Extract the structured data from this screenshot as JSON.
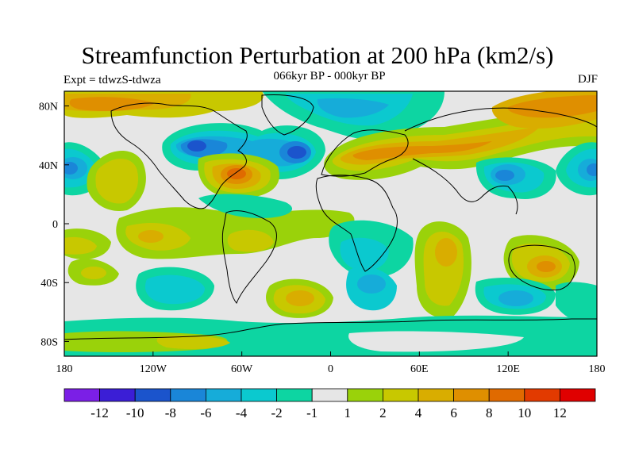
{
  "header": {
    "title": "Streamfunction Perturbation at 200 hPa (km2/s)",
    "left": "Expt = tdwzS-tdwza",
    "center": "066kyr BP - 000kyr BP",
    "right": "DJF"
  },
  "map": {
    "projection": "cylindrical-equidistant",
    "lon_range": [
      -180,
      180
    ],
    "lat_range": [
      -90,
      90
    ],
    "x_ticks": [
      {
        "value": -180,
        "label": "180"
      },
      {
        "value": -120,
        "label": "120W"
      },
      {
        "value": -60,
        "label": "60W"
      },
      {
        "value": 0,
        "label": "0"
      },
      {
        "value": 60,
        "label": "60E"
      },
      {
        "value": 120,
        "label": "120E"
      },
      {
        "value": 180,
        "label": "180"
      }
    ],
    "y_ticks": [
      {
        "value": 80,
        "label": "80N"
      },
      {
        "value": 40,
        "label": "40N"
      },
      {
        "value": 0,
        "label": "0"
      },
      {
        "value": -40,
        "label": "40S"
      },
      {
        "value": -80,
        "label": "80S"
      }
    ],
    "background_color": "#e6e6e6",
    "coastline_color": "#000000"
  },
  "colorbar": {
    "colors": [
      "#7b1fe6",
      "#3b1ed6",
      "#1b54cc",
      "#1a86d8",
      "#16acd9",
      "#0bc9cf",
      "#0dd5a2",
      "#e6e6e6",
      "#9ad20a",
      "#c8c800",
      "#d9ad00",
      "#df8f00",
      "#e06a00",
      "#e23a00",
      "#e00000"
    ],
    "labels": [
      "-12",
      "-10",
      "-8",
      "-6",
      "-4",
      "-2",
      "-1",
      "1",
      "2",
      "4",
      "6",
      "8",
      "10",
      "12"
    ]
  }
}
